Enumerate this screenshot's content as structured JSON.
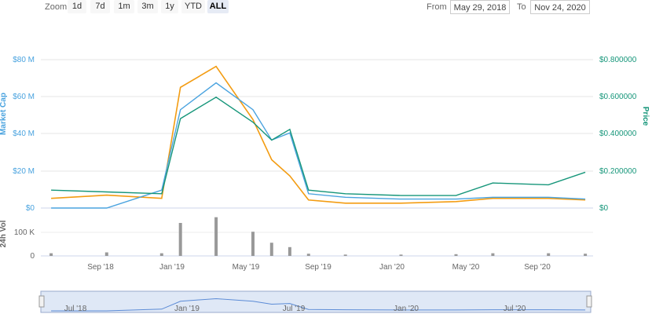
{
  "toolbar": {
    "zoom_label": "Zoom",
    "zoom_buttons": [
      "1d",
      "7d",
      "1m",
      "3m",
      "1y",
      "YTD",
      "ALL"
    ],
    "active_zoom": "ALL",
    "from_label": "From",
    "from_value": "May 29, 2018",
    "to_label": "To",
    "to_value": "Nov 24, 2020"
  },
  "colors": {
    "market_cap": "#4aa3df",
    "price": "#16967a",
    "volume_line": "#f39c12",
    "volume_bars": "#999999",
    "navigator": "#c9d8f0"
  },
  "chart_data": {
    "type": "line",
    "left_axis": {
      "label": "Market Cap",
      "ticks": [
        "$0",
        "$20 M",
        "$40 M",
        "$60 M",
        "$80 M"
      ],
      "range": [
        0,
        90000000
      ]
    },
    "right_axis": {
      "label": "Price",
      "ticks": [
        "$0",
        "$0.200000",
        "$0.400000",
        "$0.600000",
        "$0.800000"
      ],
      "range": [
        0,
        0.9
      ]
    },
    "volume_axis": {
      "label": "24h Vol",
      "ticks": [
        "0",
        "100 K"
      ]
    },
    "x_ticks": [
      "Sep '18",
      "Jan '19",
      "May '19",
      "Sep '19",
      "Jan '20",
      "May '20",
      "Sep '20"
    ],
    "navigator_ticks": [
      "Jul '18",
      "Jan '19",
      "Jul '19",
      "Jan '20",
      "Jul '20"
    ],
    "series": [
      {
        "name": "Market Cap",
        "x": [
          "2018-06",
          "2018-09",
          "2018-12",
          "2019-01",
          "2019-03",
          "2019-05",
          "2019-06",
          "2019-07",
          "2019-08",
          "2019-10",
          "2020-01",
          "2020-04",
          "2020-06",
          "2020-09",
          "2020-11"
        ],
        "values": [
          0,
          0,
          10,
          55,
          70,
          55,
          38,
          42,
          8,
          6,
          5,
          5,
          6,
          6,
          5
        ]
      },
      {
        "name": "Price",
        "x": [
          "2018-06",
          "2018-09",
          "2018-12",
          "2019-01",
          "2019-03",
          "2019-05",
          "2019-06",
          "2019-07",
          "2019-08",
          "2019-10",
          "2020-01",
          "2020-04",
          "2020-06",
          "2020-09",
          "2020-11"
        ],
        "values": [
          0.1,
          0.09,
          0.08,
          0.5,
          0.62,
          0.48,
          0.38,
          0.44,
          0.1,
          0.08,
          0.07,
          0.07,
          0.14,
          0.13,
          0.2
        ]
      },
      {
        "name": "24h Vol",
        "x": [
          "2018-06",
          "2018-09",
          "2018-12",
          "2019-01",
          "2019-03",
          "2019-05",
          "2019-06",
          "2019-07",
          "2019-08",
          "2019-10",
          "2020-01",
          "2020-04",
          "2020-06",
          "2020-09",
          "2020-11"
        ],
        "values": [
          0.06,
          0.08,
          0.06,
          0.75,
          0.88,
          0.55,
          0.3,
          0.2,
          0.05,
          0.03,
          0.03,
          0.04,
          0.06,
          0.06,
          0.05
        ]
      }
    ]
  }
}
